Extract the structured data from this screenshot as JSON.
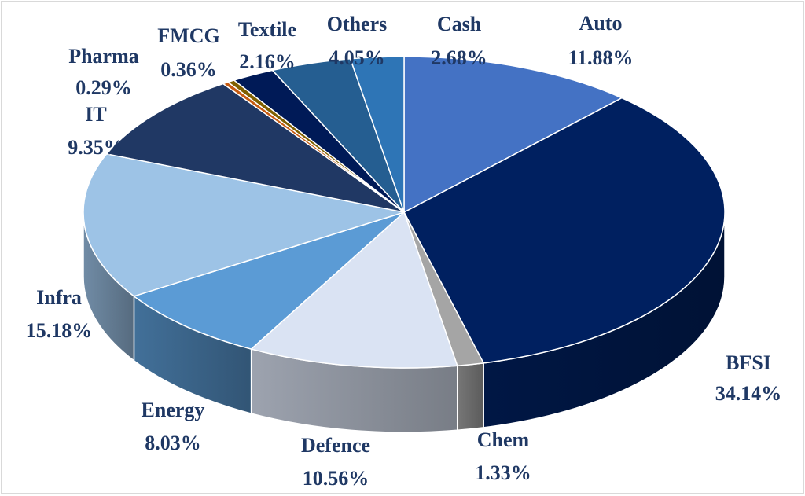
{
  "chart_data": {
    "type": "pie",
    "title": "",
    "slices": [
      {
        "label": "Auto",
        "value": 11.88,
        "display": "11.88%",
        "color": "#4472c4"
      },
      {
        "label": "BFSI",
        "value": 34.14,
        "display": "34.14%",
        "color": "#002060"
      },
      {
        "label": "Chem",
        "value": 1.33,
        "display": "1.33%",
        "color": "#a5a5a5"
      },
      {
        "label": "Defence",
        "value": 10.56,
        "display": "10.56%",
        "color": "#dae3f3"
      },
      {
        "label": "Energy",
        "value": 8.03,
        "display": "8.03%",
        "color": "#5b9bd5"
      },
      {
        "label": "Infra",
        "value": 15.18,
        "display": "15.18%",
        "color": "#9dc3e6"
      },
      {
        "label": "IT",
        "value": 9.35,
        "display": "9.35%",
        "color": "#203864"
      },
      {
        "label": "Pharma",
        "value": 0.29,
        "display": "0.29%",
        "color": "#c55a11"
      },
      {
        "label": "FMCG",
        "value": 0.36,
        "display": "0.36%",
        "color": "#7f6000"
      },
      {
        "label": "Textile",
        "value": 2.16,
        "display": "2.16%",
        "color": "#001a57"
      },
      {
        "label": "Others",
        "value": 4.05,
        "display": "4.05%",
        "color": "#255e91"
      },
      {
        "label": "Cash",
        "value": 2.68,
        "display": "2.68%",
        "color": "#2e75b6"
      }
    ],
    "legend": "none",
    "style": "3d-exploded-labels-outside"
  }
}
